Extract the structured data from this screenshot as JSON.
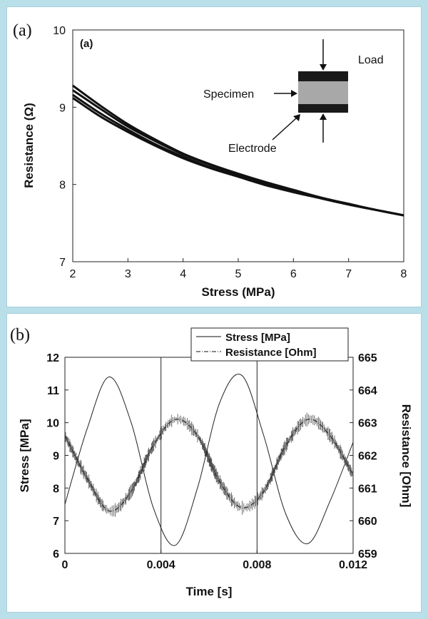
{
  "chart_data": [
    {
      "type": "line",
      "panel_label": "(a)",
      "inner_label": "(a)",
      "xlabel": "Stress (MPa)",
      "ylabel": "Resistance (Ω)",
      "xlim": [
        2,
        8
      ],
      "ylim": [
        7,
        10
      ],
      "xticks": [
        2,
        3,
        4,
        5,
        6,
        7,
        8
      ],
      "yticks": [
        7,
        8,
        9,
        10
      ],
      "grid": false,
      "series": [
        {
          "x": [
            2,
            2.5,
            3,
            3.5,
            4,
            4.5,
            5,
            5.5,
            6,
            6.5,
            7,
            7.5,
            8
          ],
          "values": [
            9.28,
            9.02,
            8.78,
            8.58,
            8.4,
            8.26,
            8.14,
            8.03,
            7.93,
            7.83,
            7.75,
            7.67,
            7.6
          ]
        },
        {
          "x": [
            2,
            2.5,
            3,
            3.5,
            4,
            4.5,
            5,
            5.5,
            6,
            6.5,
            7,
            7.5,
            8
          ],
          "values": [
            9.22,
            8.98,
            8.75,
            8.56,
            8.39,
            8.25,
            8.13,
            8.02,
            7.92,
            7.83,
            7.74,
            7.67,
            7.6
          ]
        },
        {
          "x": [
            2,
            2.5,
            3,
            3.5,
            4,
            4.5,
            5,
            5.5,
            6,
            6.5,
            7,
            7.5,
            8
          ],
          "values": [
            9.16,
            8.92,
            8.71,
            8.52,
            8.36,
            8.22,
            8.11,
            8.0,
            7.91,
            7.82,
            7.74,
            7.67,
            7.6
          ]
        },
        {
          "x": [
            2,
            2.5,
            3,
            3.5,
            4,
            4.5,
            5,
            5.5,
            6,
            6.5,
            7,
            7.5,
            8
          ],
          "values": [
            9.12,
            8.88,
            8.68,
            8.5,
            8.34,
            8.21,
            8.1,
            7.99,
            7.9,
            7.82,
            7.74,
            7.67,
            7.6
          ]
        }
      ],
      "inset": {
        "labels": {
          "load": "Load",
          "specimen": "Specimen",
          "electrode": "Electrode"
        }
      }
    },
    {
      "type": "line",
      "panel_label": "(b)",
      "xlabel": "Time [s]",
      "ylabel": "Stress [MPa]",
      "y2label": "Resistance [Ohm]",
      "xlim": [
        0,
        0.012
      ],
      "ylim": [
        6,
        12
      ],
      "y2lim": [
        659,
        665
      ],
      "xticks": [
        "0",
        "0.004",
        "0.008",
        "0.012"
      ],
      "yticks": [
        6,
        7,
        8,
        9,
        10,
        11,
        12
      ],
      "y2ticks": [
        659,
        660,
        661,
        662,
        663,
        664,
        665
      ],
      "vlines": [
        0.004,
        0.008
      ],
      "legend_position": "top-right",
      "series": [
        {
          "name": "Stress [MPa]",
          "axis": "left",
          "style": "solid",
          "x": [
            0,
            0.00092,
            0.00184,
            0.00276,
            0.00368,
            0.0046,
            0.00552,
            0.00644,
            0.00736,
            0.00828,
            0.0092,
            0.01012,
            0.01104,
            0.012
          ],
          "values": [
            7.5,
            9.8,
            11.4,
            10.0,
            7.4,
            6.25,
            8.0,
            10.6,
            11.45,
            9.6,
            7.2,
            6.3,
            7.6,
            9.4
          ]
        },
        {
          "name": "Resistance [Ohm]",
          "axis": "right",
          "style": "dash-dot",
          "x": [
            0,
            0.00092,
            0.00184,
            0.00276,
            0.00368,
            0.0046,
            0.00552,
            0.00644,
            0.00736,
            0.00828,
            0.0092,
            0.01012,
            0.01104,
            0.012
          ],
          "values": [
            662.6,
            661.3,
            660.3,
            660.9,
            662.3,
            663.1,
            662.6,
            661.2,
            660.4,
            660.9,
            662.3,
            663.1,
            662.6,
            661.4
          ]
        }
      ]
    }
  ]
}
